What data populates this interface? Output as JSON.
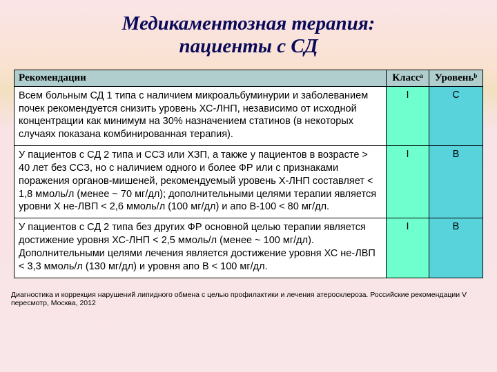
{
  "title": {
    "line1": "Медикаментозная терапия:",
    "line2": "пациенты с СД",
    "fontsize": 29,
    "color": "#0a0a5a"
  },
  "table": {
    "header_bg": "#afcecd",
    "class_bg": "#6fffcf",
    "level_bg": "#59d3db",
    "border_color": "#000000",
    "font_size_header": 15,
    "font_size_body": 14.5,
    "col_widths": {
      "rec": 540,
      "class": 62,
      "level": 78
    },
    "columns": {
      "rec": "Рекомендации",
      "class": "Классᵃ",
      "level": "Уровеньᵇ"
    },
    "rows": [
      {
        "rec": "Всем больным СД 1 типа с наличием микроальбуминурии и заболеванием почек рекомендуется снизить уровень ХС-ЛНП, независимо от исходной концентрации  как минимум на 30% назначением статинов  (в некоторых случаях показана комбинированная терапия).",
        "class": "I",
        "level": "C"
      },
      {
        "rec": "У пациентов с СД 2 типа и ССЗ или ХЗП, а также у пациентов в возрасте > 40 лет без ССЗ, но с наличием одного и более ФР или с признаками поражения органов-мишеней, рекомендуемый уровень Х-ЛНП составляет < 1,8 ммоль/л (менее ~ 70 мг/дл); дополнительными целями терапии является уровни Х не-ЛВП < 2,6 ммоль/л (100 мг/дл) и апо В-100 < 80 мг/дл.",
        "class": "I",
        "level": "B"
      },
      {
        "rec": "У пациентов с СД 2 типа без других ФР основной целью терапии является достижение уровня ХС-ЛНП < 2,5 ммоль/л (менее ~ 100 мг/дл). Дополнительными целями лечения является достижение уровня ХС не-ЛВП < 3,3 ммоль/л (130 мг/дл) и уровня апо В < 100 мг/дл.",
        "class": "I",
        "level": "B"
      }
    ]
  },
  "footnote": {
    "text": "Диагностика и коррекция нарушений липидного обмена с целью профилактики и лечения атеросклероза. Российские рекомендации V пересмотр, Москва, 2012",
    "fontsize": 10.5
  }
}
